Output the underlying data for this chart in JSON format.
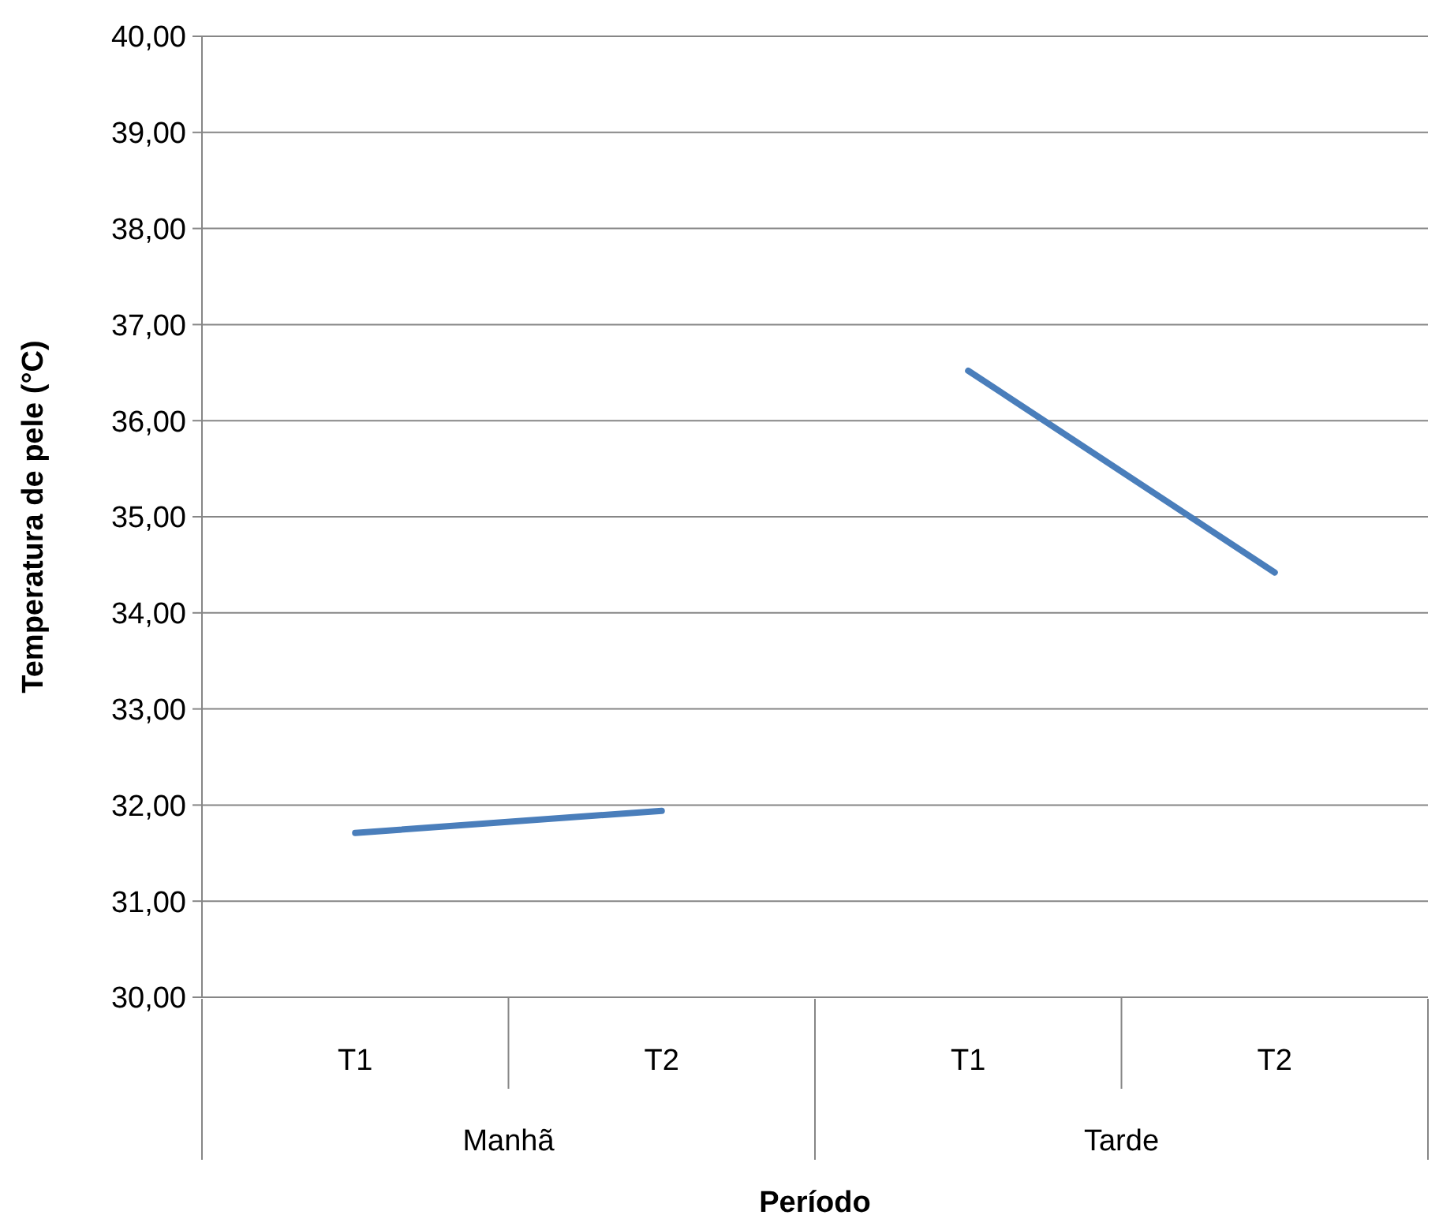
{
  "chart_data": {
    "type": "line",
    "xlabel": "Período",
    "ylabel": "Temperatura de pele (°C)",
    "categories": [
      "T1",
      "T2",
      "T1",
      "T2"
    ],
    "series": [
      {
        "color": "#4a7ebb",
        "values": [
          31.71,
          31.94,
          null,
          null
        ]
      },
      {
        "color": "#4a7ebb",
        "values": [
          null,
          null,
          36.52,
          34.42
        ]
      }
    ],
    "ylim": [
      30,
      40
    ],
    "yticks": [
      {
        "value": 30,
        "label": "30,00"
      },
      {
        "value": 31,
        "label": "31,00"
      },
      {
        "value": 32,
        "label": "32,00"
      },
      {
        "value": 33,
        "label": "33,00"
      },
      {
        "value": 34,
        "label": "34,00"
      },
      {
        "value": 35,
        "label": "35,00"
      },
      {
        "value": 36,
        "label": "36,00"
      },
      {
        "value": 37,
        "label": "37,00"
      },
      {
        "value": 38,
        "label": "38,00"
      },
      {
        "value": 39,
        "label": "39,00"
      },
      {
        "value": 40,
        "label": "40,00"
      }
    ],
    "grid": "y",
    "marker": "none",
    "line_style": "solid",
    "annotations": [
      "Manhã",
      "Tarde"
    ]
  }
}
